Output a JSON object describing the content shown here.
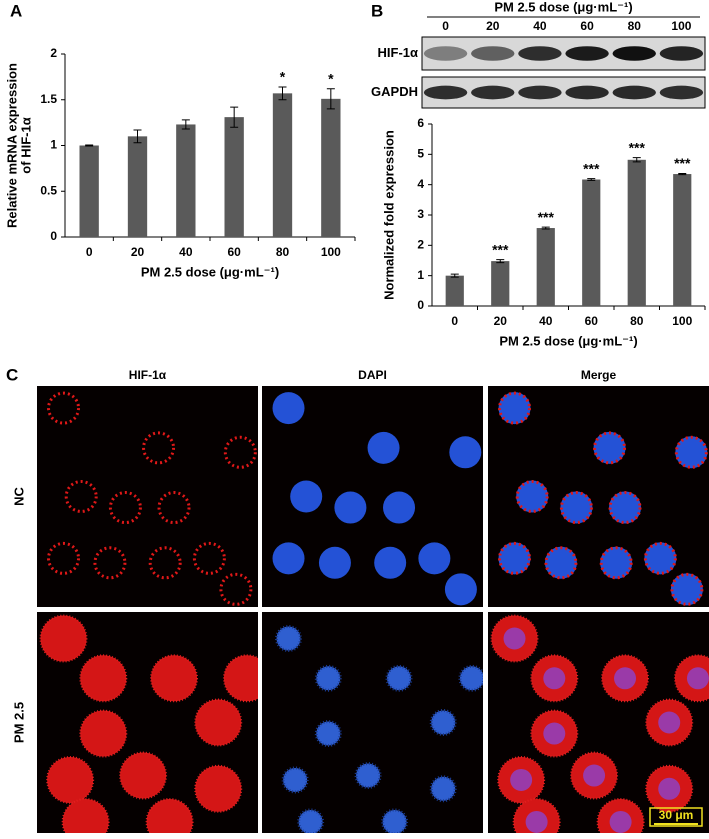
{
  "chart_data": [
    {
      "type": "bar",
      "panel": "A",
      "categories": [
        "0",
        "20",
        "40",
        "60",
        "80",
        "100"
      ],
      "values": [
        1.0,
        1.1,
        1.23,
        1.31,
        1.57,
        1.51
      ],
      "errors": [
        0.005,
        0.07,
        0.05,
        0.11,
        0.07,
        0.11
      ],
      "annotations": [
        null,
        null,
        null,
        null,
        "*",
        "*"
      ],
      "color": "#5a5a5a",
      "ylim": [
        0,
        2
      ],
      "yticks": [
        0,
        0.5,
        1,
        1.5,
        2
      ],
      "xlabel": "PM 2.5 dose (μg·mL⁻¹)",
      "ylabel": [
        "Relative mRNA expression",
        "of HIF-1α"
      ]
    },
    {
      "type": "bar",
      "panel": "B",
      "categories": [
        "0",
        "20",
        "40",
        "60",
        "80",
        "100"
      ],
      "values": [
        1.0,
        1.48,
        2.57,
        4.17,
        4.82,
        4.35
      ],
      "errors": [
        0.05,
        0.05,
        0.03,
        0.03,
        0.07,
        0.02
      ],
      "annotations": [
        null,
        "***",
        "***",
        "***",
        "***",
        "***"
      ],
      "color": "#5a5a5a",
      "ylim": [
        0,
        6
      ],
      "yticks": [
        0,
        1,
        2,
        3,
        4,
        5,
        6
      ],
      "xlabel": "PM 2.5 dose (μg·mL⁻¹)",
      "ylabel": [
        "Normalized fold expression"
      ]
    }
  ],
  "blot": {
    "header": "PM 2.5 dose (μg·mL⁻¹)",
    "lanes": [
      "0",
      "20",
      "40",
      "60",
      "80",
      "100"
    ],
    "rows": [
      "HIF-1α",
      "GAPDH"
    ]
  },
  "microscopy": {
    "panel": "C",
    "columns": [
      "HIF-1α",
      "DAPI",
      "Merge"
    ],
    "rows": [
      "NC",
      "PM 2.5"
    ],
    "scale_bar": "30 μm"
  }
}
